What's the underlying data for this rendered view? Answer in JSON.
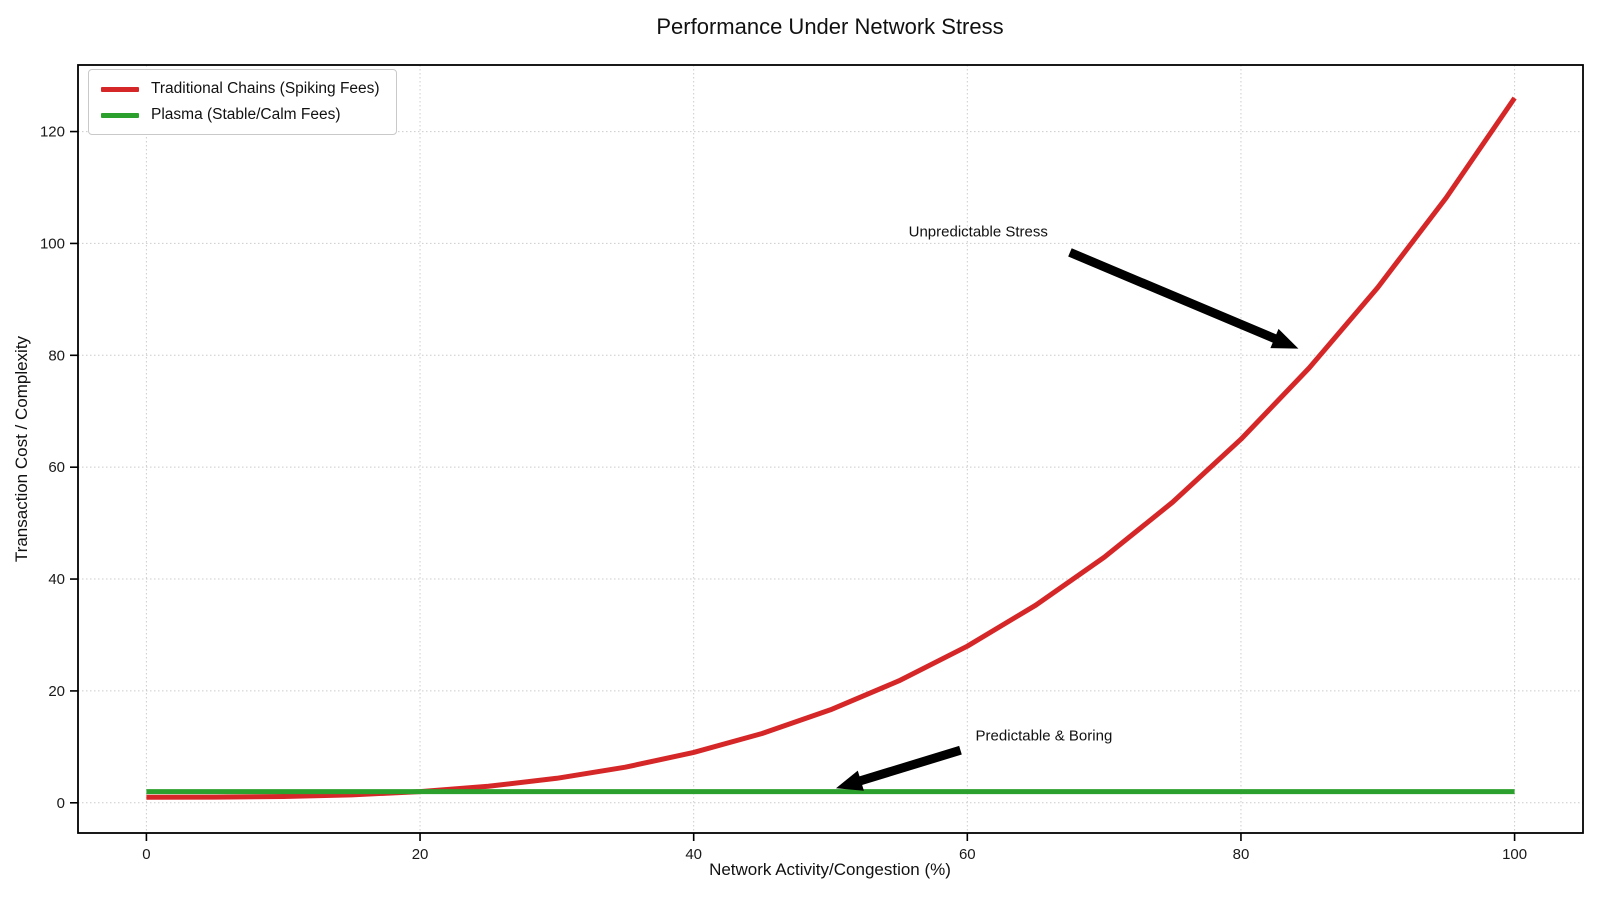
{
  "chart_data": {
    "type": "line",
    "title": "Performance Under Network Stress",
    "xlabel": "Network Activity/Congestion (%)",
    "ylabel": "Transaction Cost / Complexity",
    "xlim": [
      -5,
      105
    ],
    "ylim": [
      -5.4,
      131.9
    ],
    "x_ticks": [
      0,
      20,
      40,
      60,
      80,
      100
    ],
    "y_ticks": [
      0,
      20,
      40,
      60,
      80,
      100,
      120
    ],
    "grid": "dotted",
    "grid_color": "#cccccc",
    "legend_position": "upper-left",
    "x": [
      0,
      5,
      10,
      15,
      20,
      25,
      30,
      35,
      40,
      45,
      50,
      55,
      60,
      65,
      70,
      75,
      80,
      85,
      90,
      95,
      100
    ],
    "series": [
      {
        "name": "Traditional Chains (Spiking Fees)",
        "color": "#d62728",
        "values": [
          1,
          1.02,
          1.13,
          1.42,
          2,
          2.95,
          4.38,
          6.36,
          9,
          12.39,
          16.63,
          21.8,
          28,
          35.33,
          43.88,
          53.73,
          65,
          77.77,
          92.13,
          108.17,
          126
        ]
      },
      {
        "name": "Plasma (Stable/Calm Fees)",
        "color": "#2ca02c",
        "values": [
          2,
          2,
          2,
          2,
          2,
          2,
          2,
          2,
          2,
          2,
          2,
          2,
          2,
          2,
          2,
          2,
          2,
          2,
          2,
          2,
          2
        ]
      }
    ],
    "annotations": [
      {
        "text": "Unpredictable Stress",
        "text_x": 60.8,
        "text_y": 102,
        "arrow_from_x": 67.5,
        "arrow_from_y": 98.4,
        "arrow_to_x": 84.2,
        "arrow_to_y": 81.2,
        "arrow_color": "#000000"
      },
      {
        "text": "Predictable & Boring",
        "text_x": 65.6,
        "text_y": 11.9,
        "arrow_from_x": 59.5,
        "arrow_from_y": 9.4,
        "arrow_to_x": 50.4,
        "arrow_to_y": 2.6,
        "arrow_color": "#000000"
      }
    ]
  },
  "style": {
    "spine_color": "#000000",
    "tick_color": "#000000",
    "text_color": "#1a1a1a",
    "background": "#ffffff"
  }
}
